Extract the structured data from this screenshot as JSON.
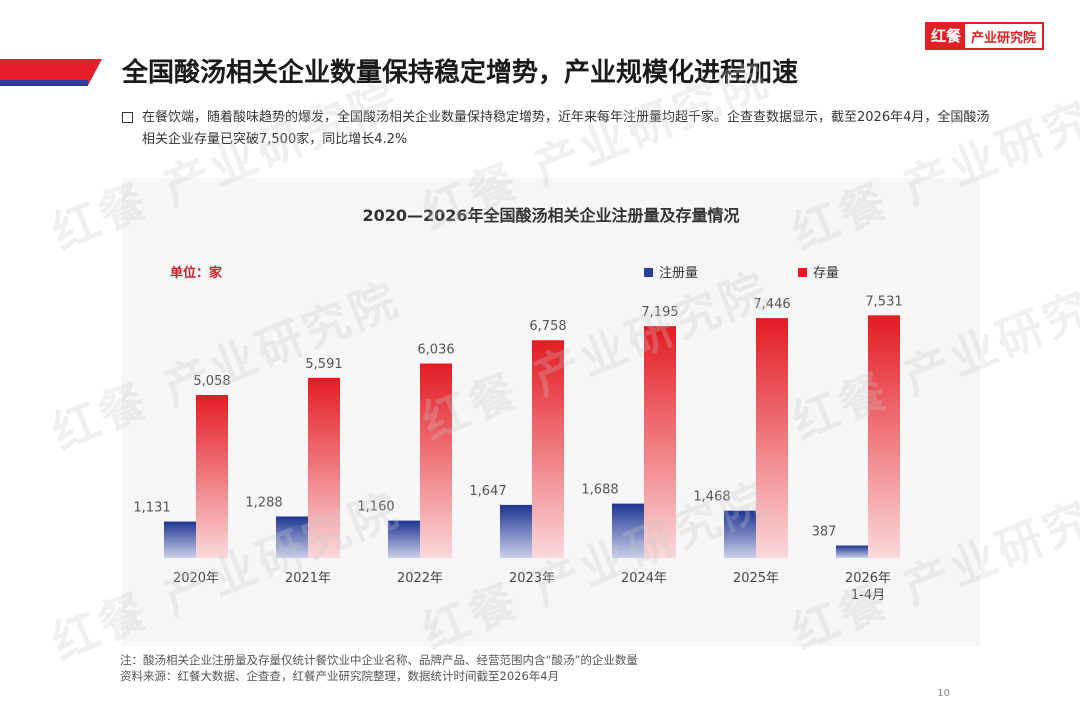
{
  "page_title": "全国酸汤相关企业数量保持稳定增势，产业规模化进程加速",
  "brand": {
    "mark": "红餐",
    "text": "产业研究院"
  },
  "watermark": "红餐 产业研究院",
  "bullet_text": "在餐饮端，随着酸味趋势的爆发，全国酸汤相关企业数量保持稳定增势，近年来每年注册量均超千家。企查查数据显示，截至2026年4月，全国酸汤相关企业存量已突破7,500家，同比增长4.2%",
  "chart_data": {
    "type": "bar",
    "title": "2020—2026年全国酸汤相关企业注册量及存量情况",
    "unit_label": "单位：家",
    "categories": [
      "2020年",
      "2021年",
      "2022年",
      "2023年",
      "2024年",
      "2025年",
      "2026年1-4月"
    ],
    "category_lines": [
      [
        "2020年"
      ],
      [
        "2021年"
      ],
      [
        "2022年"
      ],
      [
        "2023年"
      ],
      [
        "2024年"
      ],
      [
        "2025年"
      ],
      [
        "2026年",
        "1-4月"
      ]
    ],
    "series": [
      {
        "name": "注册量",
        "values": [
          1131,
          1288,
          1160,
          1647,
          1688,
          1468,
          387
        ],
        "labels": [
          "1,131",
          "1,288",
          "1,160",
          "1,647",
          "1,688",
          "1,468",
          "387"
        ],
        "color": "#2a3e9a"
      },
      {
        "name": "存量",
        "values": [
          5058,
          5591,
          6036,
          6758,
          7195,
          7446,
          7531
        ],
        "labels": [
          "5,058",
          "5,591",
          "6,036",
          "6,758",
          "7,195",
          "7,446",
          "7,531"
        ],
        "color": "#e31b23"
      }
    ],
    "ylim": [
      0,
      9000
    ],
    "grid": false,
    "legend_position": "top-right"
  },
  "footnote": {
    "note": "注：酸汤相关企业注册量及存量仅统计餐饮业中企业名称、品牌产品、经营范围内含“酸汤”的企业数量",
    "source": "资料来源：红餐大数据、企查查，红餐产业研究院整理，数据统计时间截至2026年4月"
  },
  "page_number": "10"
}
